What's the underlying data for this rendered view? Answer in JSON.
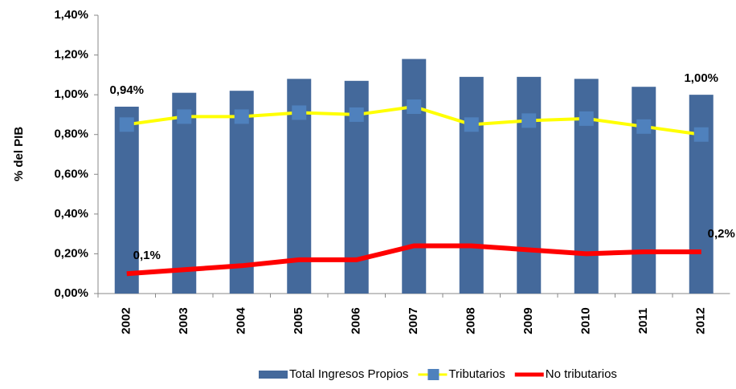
{
  "chart_data": {
    "type": "bar",
    "y_label": "% del PIB",
    "categories": [
      "2002",
      "2003",
      "2004",
      "2005",
      "2006",
      "2007",
      "2008",
      "2009",
      "2010",
      "2011",
      "2012"
    ],
    "series": [
      {
        "name": "Total Ingresos Propios",
        "type": "bar",
        "color": "#44699b",
        "values": [
          0.94,
          1.01,
          1.02,
          1.08,
          1.07,
          1.18,
          1.09,
          1.09,
          1.08,
          1.04,
          1.0
        ],
        "value_labels": [
          "0,94%",
          null,
          null,
          null,
          null,
          null,
          null,
          null,
          null,
          null,
          "1,00%"
        ]
      },
      {
        "name": "Tributarios",
        "type": "line",
        "color": "#ffff00",
        "marker_color": "#4f81bd",
        "values": [
          0.85,
          0.89,
          0.89,
          0.91,
          0.9,
          0.94,
          0.85,
          0.87,
          0.88,
          0.84,
          0.8
        ]
      },
      {
        "name": "No tributarios",
        "type": "line",
        "color": "#ff0000",
        "values": [
          0.1,
          0.12,
          0.14,
          0.17,
          0.17,
          0.24,
          0.24,
          0.22,
          0.2,
          0.21,
          0.21
        ],
        "value_labels": [
          "0,1%",
          null,
          null,
          null,
          null,
          null,
          null,
          null,
          null,
          null,
          "0,2%"
        ]
      }
    ],
    "ylim": [
      0,
      1.4
    ],
    "yticks": [
      {
        "value": 0,
        "label": "0,00%"
      },
      {
        "value": 0.2,
        "label": "0,20%"
      },
      {
        "value": 0.4,
        "label": "0,40%"
      },
      {
        "value": 0.6,
        "label": "0,60%"
      },
      {
        "value": 0.8,
        "label": "0,80%"
      },
      {
        "value": 1.0,
        "label": "1,00%"
      },
      {
        "value": 1.2,
        "label": "1,20%"
      },
      {
        "value": 1.4,
        "label": "1,40%"
      }
    ],
    "legend": "bottom"
  }
}
